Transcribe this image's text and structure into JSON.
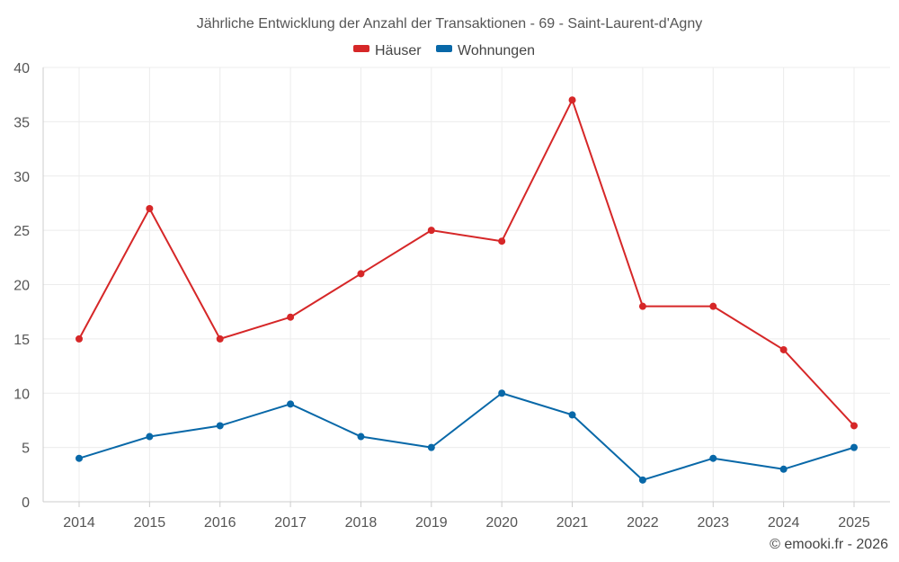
{
  "chart_data": {
    "type": "line",
    "title": "Jährliche Entwicklung der Anzahl der Transaktionen - 69 - Saint-Laurent-d'Agny",
    "xlabel": "",
    "ylabel": "",
    "categories": [
      "2014",
      "2015",
      "2016",
      "2017",
      "2018",
      "2019",
      "2020",
      "2021",
      "2022",
      "2023",
      "2024",
      "2025"
    ],
    "ylim": [
      0,
      40
    ],
    "yticks": [
      0,
      5,
      10,
      15,
      20,
      25,
      30,
      35,
      40
    ],
    "grid": true,
    "legend_position": "top-center",
    "series": [
      {
        "name": "Häuser",
        "color": "#d62728",
        "values": [
          15,
          27,
          15,
          17,
          21,
          25,
          24,
          37,
          18,
          18,
          14,
          7
        ]
      },
      {
        "name": "Wohnungen",
        "color": "#0868a8",
        "values": [
          4,
          6,
          7,
          9,
          6,
          5,
          10,
          8,
          2,
          4,
          3,
          5
        ]
      }
    ]
  },
  "credit": "© emooki.fr - 2026"
}
